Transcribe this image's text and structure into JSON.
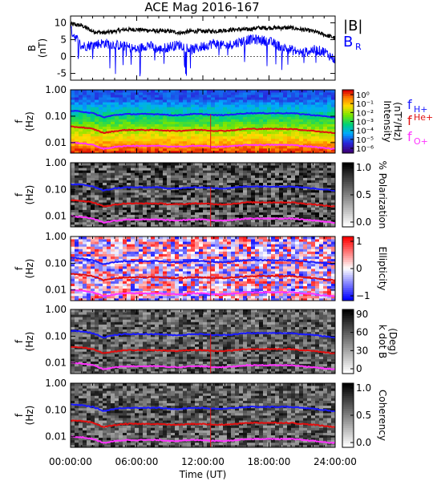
{
  "title": "ACE Mag 2016-167",
  "colors": {
    "B_total": "#000000",
    "B_R": "#0000ff",
    "f_H": "#1a1aff",
    "f_He": "#e01010",
    "f_O": "#ff33ff"
  },
  "chart_data": [
    {
      "type": "line",
      "ylabel": "B\n(nT)",
      "ylim": [
        -7,
        12
      ],
      "yticks": [
        -5,
        0,
        5,
        10
      ],
      "xlim": [
        0,
        24
      ],
      "legend": [
        "|B|",
        "B_R"
      ],
      "legend_placement": "right",
      "series": [
        {
          "name": "|B|",
          "color": "#000000",
          "x": [
            0,
            1,
            2,
            3,
            4,
            5,
            6,
            7,
            8,
            9,
            10,
            11,
            12,
            13,
            14,
            15,
            16,
            17,
            18,
            19,
            20,
            21,
            22,
            23,
            24
          ],
          "values": [
            9.5,
            9.2,
            7.5,
            7.0,
            7.5,
            8.0,
            8.0,
            7.8,
            7.5,
            7.5,
            7.0,
            7.5,
            7.5,
            7.5,
            7.8,
            8.0,
            8.0,
            8.5,
            8.5,
            8.5,
            8.5,
            8.0,
            7.5,
            6.5,
            5.5
          ]
        },
        {
          "name": "B_R",
          "color": "#0000ff",
          "x": [
            0,
            1,
            2,
            3,
            4,
            5,
            6,
            7,
            8,
            9,
            10,
            11,
            12,
            13,
            14,
            15,
            16,
            17,
            18,
            19,
            20,
            21,
            22,
            23,
            24
          ],
          "values": [
            8.0,
            3.0,
            3.5,
            4.0,
            3.5,
            3.0,
            2.0,
            3.5,
            2.0,
            3.0,
            3.5,
            2.0,
            3.0,
            4.0,
            3.0,
            4.0,
            5.0,
            5.0,
            4.5,
            3.0,
            2.0,
            1.0,
            2.0,
            1.5,
            -1.0
          ]
        }
      ]
    },
    {
      "type": "heatmap",
      "ylabel": "f\n(Hz)",
      "ylim": [
        0.004,
        1.0
      ],
      "yscale": "log",
      "yticks": [
        "1.00",
        "0.10",
        "0.01"
      ],
      "colorbar": {
        "label": "Intensity\n(nT²/Hz)",
        "ticks": [
          "10⁰",
          "10⁻¹",
          "10⁻²",
          "10⁻³",
          "10⁻⁴",
          "10⁻⁵",
          "10⁻⁶"
        ],
        "scale": "rainbow"
      },
      "legend": [
        "f_H+",
        "f_He+",
        "f_O+"
      ]
    },
    {
      "type": "heatmap",
      "ylabel": "f\n(Hz)",
      "ylim": [
        0.004,
        1.0
      ],
      "yscale": "log",
      "yticks": [
        "1.00",
        "0.10",
        "0.01"
      ],
      "colorbar": {
        "label": "% Polarization",
        "ticks": [
          "1.0",
          "0.5",
          "0.0"
        ],
        "scale": "gray"
      }
    },
    {
      "type": "heatmap",
      "ylabel": "f\n(Hz)",
      "ylim": [
        0.004,
        1.0
      ],
      "yscale": "log",
      "yticks": [
        "1.00",
        "0.10",
        "0.01"
      ],
      "colorbar": {
        "label": "Ellipticity",
        "ticks": [
          "1",
          "0",
          "−1"
        ],
        "scale": "bwr"
      }
    },
    {
      "type": "heatmap",
      "ylabel": "f\n(Hz)",
      "ylim": [
        0.004,
        1.0
      ],
      "yscale": "log",
      "yticks": [
        "1.00",
        "0.10",
        "0.01"
      ],
      "colorbar": {
        "label": "k dot B\n(Deg)",
        "ticks": [
          "90",
          "60",
          "30",
          "0"
        ],
        "scale": "gray"
      }
    },
    {
      "type": "heatmap",
      "ylabel": "f\n(Hz)",
      "ylim": [
        0.004,
        1.0
      ],
      "yscale": "log",
      "yticks": [
        "1.00",
        "0.10",
        "0.01"
      ],
      "xlabel": "Time (UT)",
      "xticks": [
        "00:00:00",
        "06:00:00",
        "12:00:00",
        "18:00:00",
        "24:00:00"
      ],
      "colorbar": {
        "label": "Coherency",
        "ticks": [
          "1.0",
          "0.5",
          "0.0"
        ],
        "scale": "gray"
      }
    }
  ],
  "gyro_lines": {
    "x": [
      0,
      1,
      2,
      3,
      4,
      5,
      6,
      7,
      8,
      9,
      10,
      11,
      12,
      13,
      14,
      15,
      16,
      17,
      18,
      19,
      20,
      21,
      22,
      23,
      24
    ],
    "f_H": [
      0.16,
      0.15,
      0.13,
      0.09,
      0.11,
      0.12,
      0.12,
      0.12,
      0.12,
      0.11,
      0.11,
      0.12,
      0.12,
      0.11,
      0.11,
      0.12,
      0.13,
      0.13,
      0.13,
      0.13,
      0.13,
      0.12,
      0.11,
      0.1,
      0.09
    ],
    "f_He": [
      0.04,
      0.038,
      0.033,
      0.023,
      0.027,
      0.03,
      0.03,
      0.03,
      0.03,
      0.028,
      0.028,
      0.03,
      0.03,
      0.028,
      0.028,
      0.03,
      0.033,
      0.033,
      0.033,
      0.033,
      0.033,
      0.03,
      0.028,
      0.025,
      0.023
    ],
    "f_O": [
      0.01,
      0.0095,
      0.0082,
      0.0058,
      0.0068,
      0.0075,
      0.0075,
      0.0075,
      0.0075,
      0.007,
      0.007,
      0.0075,
      0.0075,
      0.007,
      0.007,
      0.0075,
      0.0082,
      0.0082,
      0.0082,
      0.0082,
      0.0082,
      0.0075,
      0.007,
      0.0062,
      0.0058
    ]
  }
}
